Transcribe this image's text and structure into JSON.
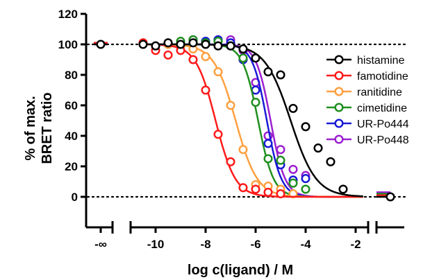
{
  "chart_data": {
    "type": "line",
    "title": "",
    "xlabel": "log c(ligand) / M",
    "ylabel_lines": [
      "% of max.",
      "BRET ratio"
    ],
    "xlim": [
      -11,
      -1.5
    ],
    "ylim": [
      -20,
      120
    ],
    "x_ticks": [
      -10,
      -8,
      -6,
      -4,
      -2
    ],
    "x_tick_labels": [
      "-10",
      "-8",
      "-6",
      "-4",
      "-2"
    ],
    "y_ticks": [
      0,
      20,
      40,
      60,
      80,
      100,
      120
    ],
    "y_tick_labels": [
      "0",
      "20",
      "40",
      "60",
      "80",
      "100",
      "120"
    ],
    "neg_inf_label": "-∞",
    "reference_lines": [
      0,
      100
    ],
    "legend_position": "right",
    "series": [
      {
        "name": "histamine",
        "color": "#000000",
        "ec50_log": -4.6,
        "hill": 0.85,
        "x": [
          -10.5,
          -10,
          -9.5,
          -9,
          -8.5,
          -8,
          -7.5,
          -7,
          -6.5,
          -6,
          -5.5,
          -5,
          -4.5,
          -4,
          -3.5,
          -3,
          -2.5
        ],
        "y": [
          100,
          99,
          101,
          100,
          101,
          100,
          99,
          99,
          97,
          91,
          82,
          80,
          58,
          46,
          32,
          23,
          5
        ]
      },
      {
        "name": "famotidine",
        "color": "#ff1a1a",
        "ec50_log": -7.6,
        "hill": 1.1,
        "x": [
          -10.5,
          -10,
          -9.5,
          -9,
          -8.5,
          -8,
          -7.5,
          -7,
          -6.5,
          -6,
          -5.5,
          -5
        ],
        "y": [
          101,
          96,
          93,
          96,
          90,
          70,
          41,
          23,
          6,
          5,
          3,
          2
        ]
      },
      {
        "name": "ranitidine",
        "color": "#ffa040",
        "ec50_log": -6.8,
        "hill": 1.0,
        "x": [
          -9.5,
          -9,
          -8.5,
          -8,
          -7.5,
          -7,
          -6.5,
          -6,
          -5.5,
          -5,
          -4.5
        ],
        "y": [
          100,
          99,
          97,
          92,
          82,
          60,
          31,
          8,
          7,
          5,
          2
        ]
      },
      {
        "name": "cimetidine",
        "color": "#1f8f1f",
        "ec50_log": -5.9,
        "hill": 1.4,
        "x": [
          -9,
          -8.5,
          -8,
          -7.5,
          -7,
          -6.5,
          -6,
          -5.5,
          -5,
          -4.5,
          -4
        ],
        "y": [
          102,
          103,
          101,
          102,
          99,
          91,
          62,
          25,
          24,
          9,
          5
        ]
      },
      {
        "name": "UR-Po444",
        "color": "#1a1ad6",
        "ec50_log": -5.55,
        "hill": 1.5,
        "x": [
          -8.5,
          -8,
          -7.5,
          -7,
          -6.5,
          -6,
          -5.5,
          -5,
          -4.5,
          -4
        ],
        "y": [
          103,
          102,
          103,
          101,
          90,
          70,
          35,
          21,
          11,
          12
        ]
      },
      {
        "name": "UR-Po448",
        "color": "#9b20d0",
        "ec50_log": -5.4,
        "hill": 1.5,
        "x": [
          -7.5,
          -7,
          -6.5,
          -6,
          -5.5,
          -5,
          -4.5,
          -4
        ],
        "y": [
          103,
          103,
          96,
          75,
          40,
          31,
          18,
          14
        ]
      }
    ],
    "neg_inf_values": [
      100,
      101,
      101,
      101,
      101,
      101
    ],
    "pos_inf_values": [
      0,
      1,
      1,
      2,
      2,
      3
    ]
  }
}
